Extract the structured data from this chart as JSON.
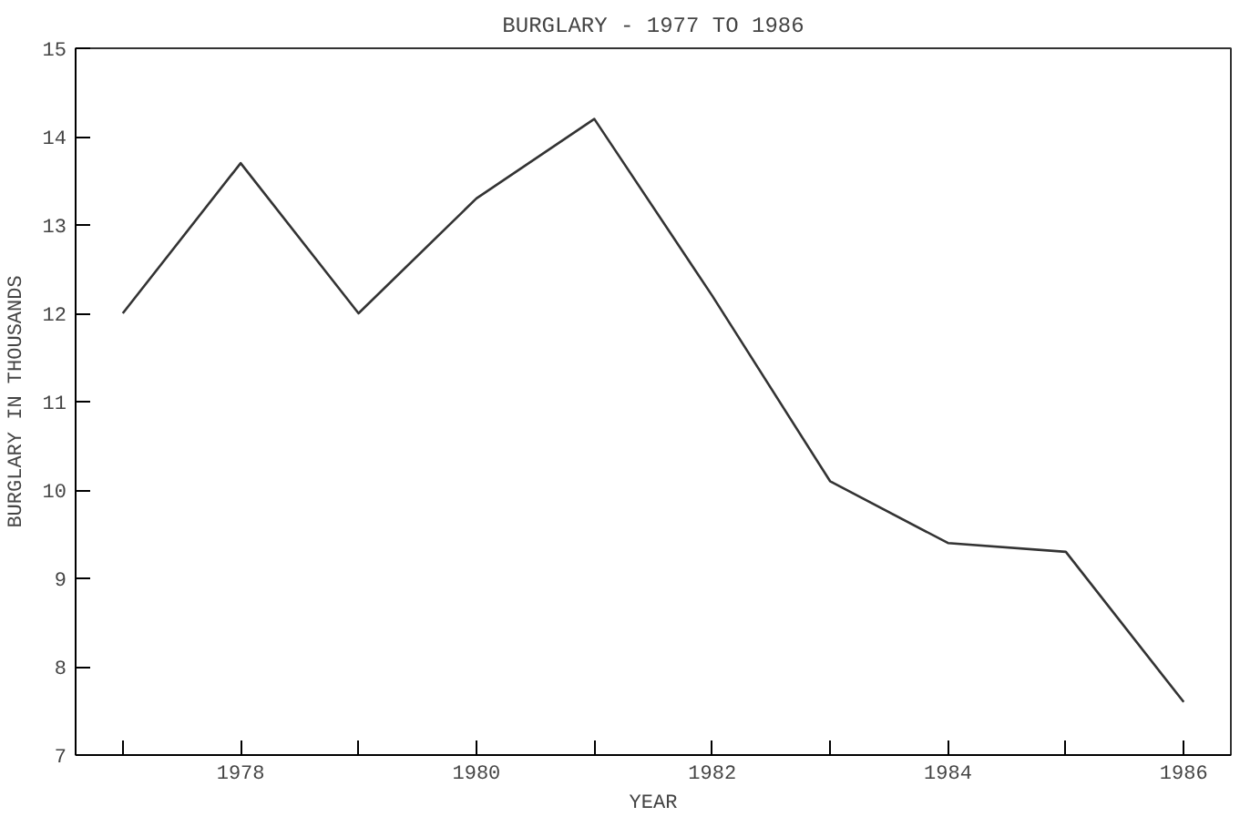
{
  "chart_data": {
    "type": "line",
    "title": "BURGLARY - 1977 TO 1986",
    "xlabel": "YEAR",
    "ylabel": "BURGLARY IN THOUSANDS",
    "x": [
      1977,
      1978,
      1979,
      1980,
      1981,
      1982,
      1983,
      1984,
      1985,
      1986
    ],
    "series": [
      {
        "color": "#333333",
        "values": [
          12.0,
          13.7,
          12.0,
          13.3,
          14.2,
          12.2,
          10.1,
          9.4,
          9.3,
          7.6
        ]
      }
    ],
    "xlim": [
      1976.6,
      1986.4
    ],
    "ylim": [
      7,
      15
    ],
    "xticks": [
      {
        "value": 1977,
        "label": null
      },
      1978,
      {
        "value": 1979,
        "label": null
      },
      1980,
      {
        "value": 1981,
        "label": null
      },
      1982,
      {
        "value": 1983,
        "label": null
      },
      1984,
      {
        "value": 1985,
        "label": null
      },
      1986
    ],
    "yticks": [
      7,
      8,
      9,
      10,
      11,
      12,
      13,
      14,
      15
    ],
    "grid": false,
    "marker": "none",
    "line_style": "solid"
  }
}
